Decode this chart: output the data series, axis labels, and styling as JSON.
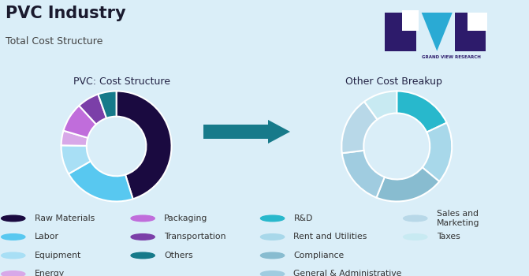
{
  "title": "PVC Industry",
  "subtitle": "Total Cost Structure",
  "background_color": "#daeef8",
  "left_chart_title": "PVC: Cost Structure",
  "left_title_bg": "#b3d9f0",
  "right_chart_title": "Other Cost Breakup",
  "right_title_bg": "#b3d9f0",
  "left_values": [
    42,
    20,
    8,
    4,
    8,
    6,
    5
  ],
  "left_colors": [
    "#1a0a40",
    "#58c8f0",
    "#a8dff5",
    "#d8a8e8",
    "#c06ddb",
    "#7b3fa8",
    "#167a8a"
  ],
  "right_values": [
    18,
    18,
    20,
    17,
    17,
    10
  ],
  "right_colors": [
    "#28b8cc",
    "#a8d8ea",
    "#88bcd0",
    "#a0cce0",
    "#b8d8e8",
    "#c8eaf2"
  ],
  "legend_left_col1": [
    {
      "label": "Raw Materials",
      "color": "#1a0a40"
    },
    {
      "label": "Labor",
      "color": "#58c8f0"
    },
    {
      "label": "Equipment",
      "color": "#a8dff5"
    },
    {
      "label": "Energy",
      "color": "#d8a8e8"
    }
  ],
  "legend_left_col2": [
    {
      "label": "Packaging",
      "color": "#c06ddb"
    },
    {
      "label": "Transportation",
      "color": "#7b3fa8"
    },
    {
      "label": "Others",
      "color": "#167a8a"
    }
  ],
  "legend_right_col1": [
    {
      "label": "R&D",
      "color": "#28b8cc"
    },
    {
      "label": "Rent and Utilities",
      "color": "#a8d8ea"
    },
    {
      "label": "Compliance",
      "color": "#88bcd0"
    },
    {
      "label": "General & Administrative",
      "color": "#a0cce0"
    }
  ],
  "legend_right_col2": [
    {
      "label": "Sales and\nMarketing",
      "color": "#b8d8e8"
    },
    {
      "label": "Taxes",
      "color": "#c8eaf2"
    }
  ],
  "arrow_color": "#177a8a",
  "title_fontsize": 15,
  "subtitle_fontsize": 9,
  "chart_title_fontsize": 9,
  "legend_fontsize": 7.8
}
